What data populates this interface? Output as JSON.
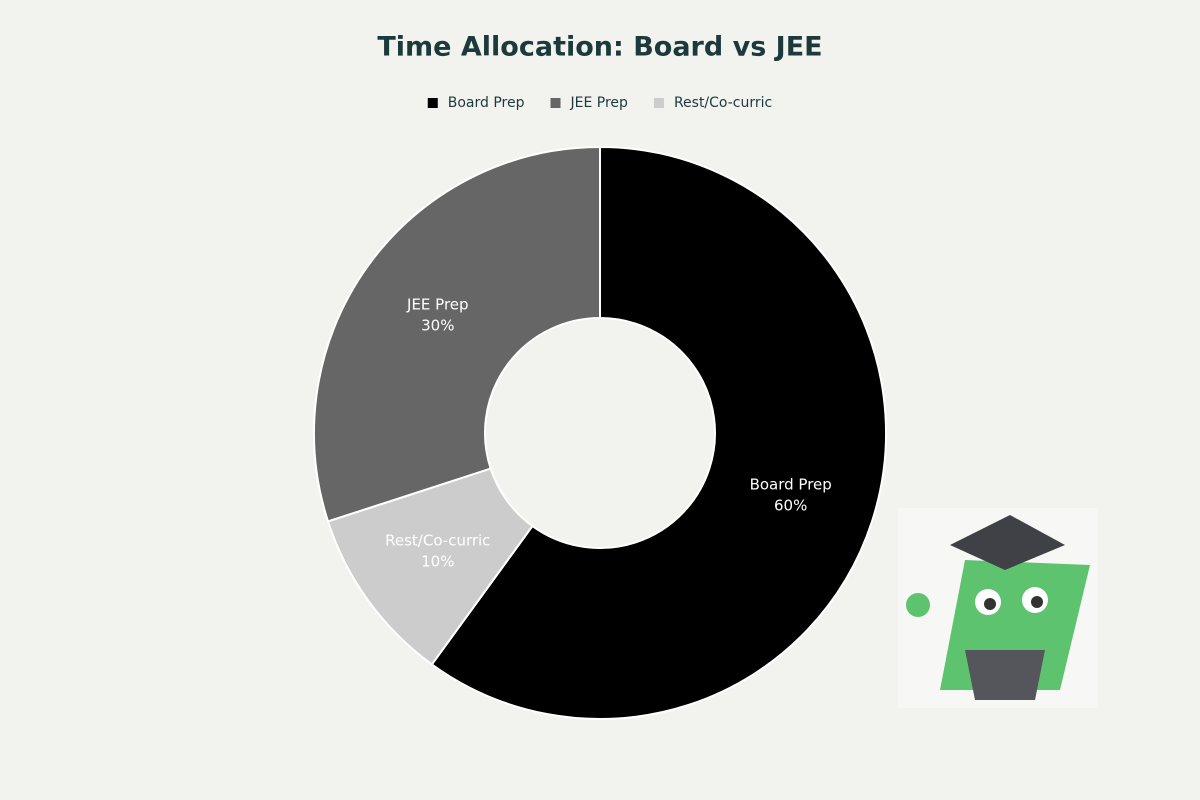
{
  "chart_data": {
    "type": "donut",
    "title": "Time Allocation: Board vs JEE",
    "categories": [
      "Board Prep",
      "JEE Prep",
      "Rest/Co-curric"
    ],
    "values": [
      60,
      30,
      10
    ],
    "value_labels": [
      "60%",
      "30%",
      "10%"
    ],
    "colors": [
      "#000000",
      "#666666",
      "#cccccc"
    ],
    "legend": "top"
  }
}
